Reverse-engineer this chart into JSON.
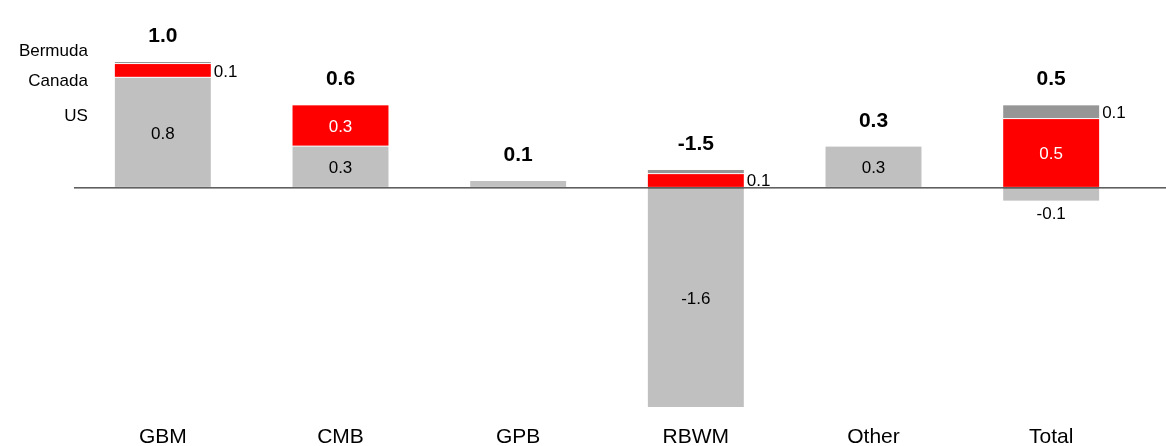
{
  "chart_data": {
    "type": "bar",
    "stacked": true,
    "categories": [
      "GBM",
      "CMB",
      "GPB",
      "RBWM",
      "Other",
      "Total"
    ],
    "series": [
      {
        "name": "US",
        "color": "#c0c0c0",
        "values": [
          0.8,
          0.3,
          0.05,
          -1.6,
          0.3,
          -0.1
        ],
        "value_labels": [
          "0.8",
          "0.3",
          null,
          "-1.6",
          "0.3",
          "-0.1"
        ]
      },
      {
        "name": "Canada",
        "color": "#ff0000",
        "values": [
          0.1,
          0.3,
          null,
          0.1,
          null,
          0.5
        ],
        "value_labels": [
          "0.1",
          "0.3",
          null,
          "0.1",
          null,
          "0.5"
        ]
      },
      {
        "name": "Bermuda",
        "color": "#969696",
        "values": [
          0.015,
          null,
          null,
          0.03,
          null,
          0.1
        ],
        "value_labels": [
          null,
          null,
          null,
          null,
          null,
          "0.1"
        ]
      }
    ],
    "totals": [
      "1.0",
      "0.6",
      "0.1",
      "-1.5",
      "0.3",
      "0.5"
    ]
  }
}
